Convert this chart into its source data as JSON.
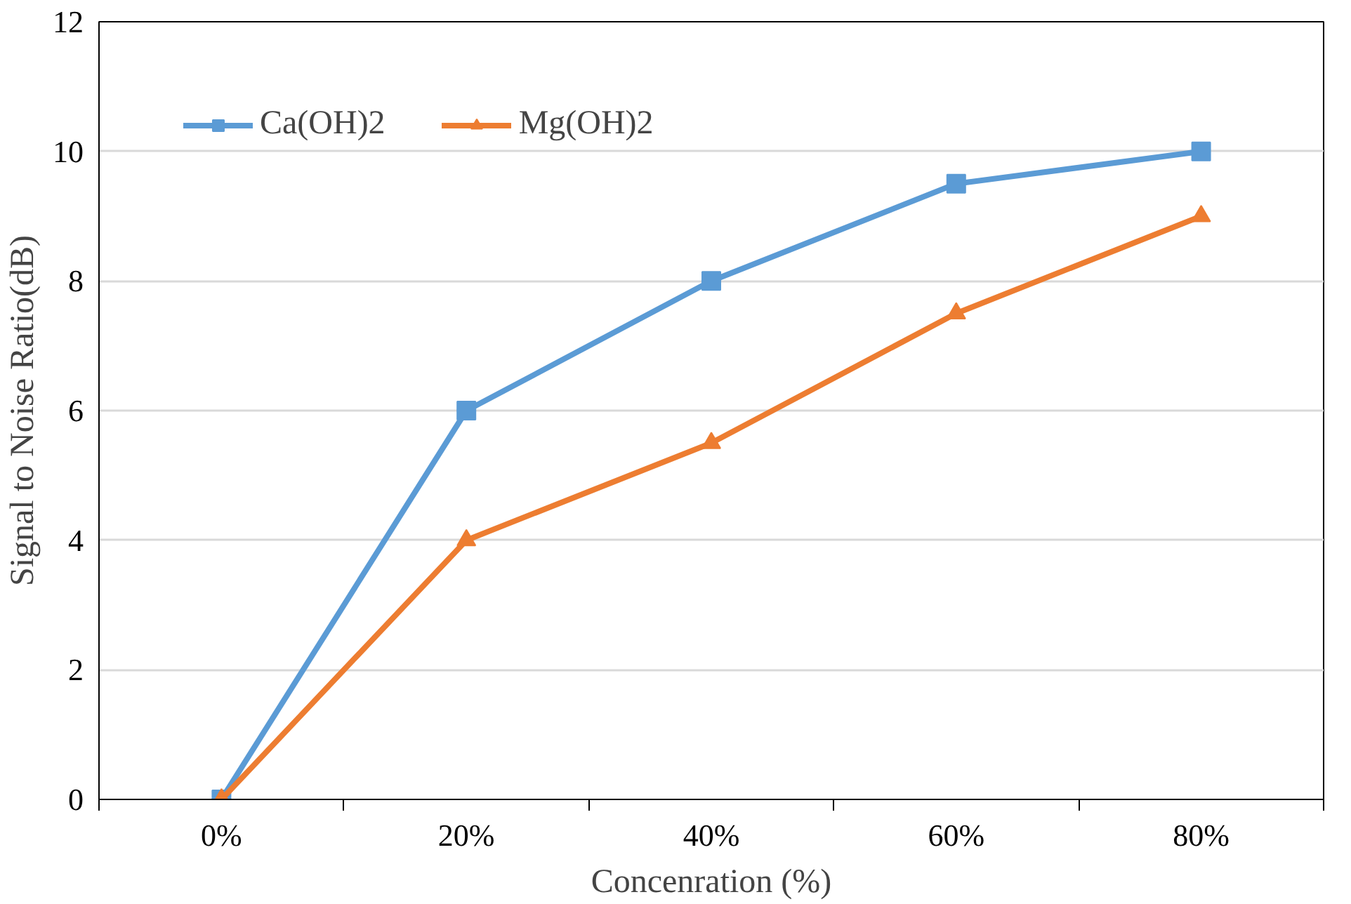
{
  "chart_data": {
    "type": "line",
    "xlabel": "Concenration (%)",
    "ylabel": "Signal to Noise Ratio(dB)",
    "categories": [
      "0%",
      "20%",
      "40%",
      "60%",
      "80%"
    ],
    "series": [
      {
        "name": "Ca(OH)2",
        "color": "#5b9bd5",
        "marker": "square",
        "values": [
          0,
          6,
          8,
          9.5,
          10
        ]
      },
      {
        "name": "Mg(OH)2",
        "color": "#ed7d31",
        "marker": "triangle",
        "values": [
          0,
          4,
          5.5,
          7.5,
          9
        ]
      }
    ],
    "ylim": [
      0,
      12
    ],
    "yticks": [
      0,
      2,
      4,
      6,
      8,
      10,
      12
    ],
    "grid": "y",
    "legend": "top left",
    "line_style": "solid"
  }
}
